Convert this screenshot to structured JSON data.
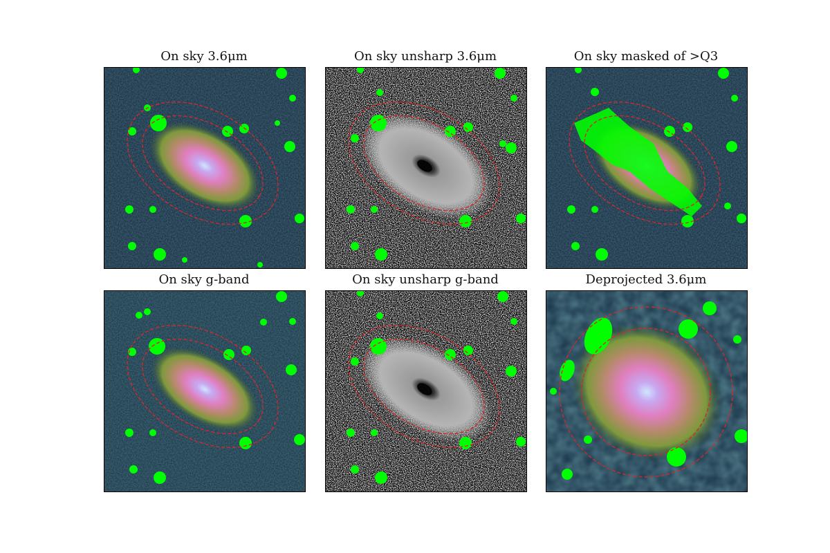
{
  "panels": [
    {
      "title": "On sky 3.6μm",
      "style": "color"
    },
    {
      "title": "On sky unsharp 3.6μm",
      "style": "unsharp"
    },
    {
      "title": "On sky masked of >Q3",
      "style": "masked"
    },
    {
      "title": "On sky g-band",
      "style": "color"
    },
    {
      "title": "On sky unsharp g-band",
      "style": "unsharp"
    },
    {
      "title": "Deprojected 3.6μm",
      "style": "deprojected"
    }
  ],
  "colors": {
    "mask": "#00ff00",
    "ellipse": "#d62728",
    "sky": "#132638",
    "galaxy_core": "#cfe6ff",
    "galaxy_mid": "#e07fc0",
    "galaxy_outer": "#7e9a3c"
  }
}
